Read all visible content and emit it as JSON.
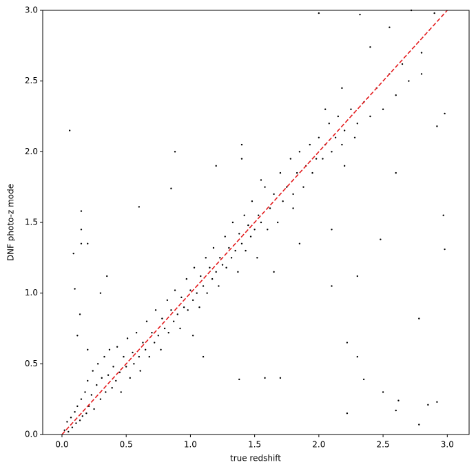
{
  "chart_data": {
    "type": "scatter",
    "x_label": "true redshift",
    "y_label": "DNF photo-z mode",
    "color": "#000000",
    "xlim": [
      -0.15,
      3.17
    ],
    "ylim": [
      0,
      3
    ],
    "xticks": [
      {
        "value": 0,
        "label": "0.0"
      },
      0.5,
      {
        "value": 1,
        "label": "1.0"
      },
      1.5,
      {
        "value": 2,
        "label": "2.0"
      },
      2.5,
      {
        "value": 3,
        "label": "3.0"
      }
    ],
    "yticks": [
      {
        "value": 0,
        "label": "0.0"
      },
      0.5,
      {
        "value": 1,
        "label": "1.0"
      },
      1.5,
      {
        "value": 2,
        "label": "2.0"
      },
      2.5,
      {
        "value": 3,
        "label": "3.0"
      }
    ],
    "reference_line": {
      "x": [
        0,
        3
      ],
      "y": [
        0,
        3
      ],
      "color": "#e41a1c",
      "style": "dashed"
    },
    "x": [
      0.06,
      0.15,
      0.15,
      0.2,
      0.15,
      0.09,
      0.1,
      0.88,
      1.38,
      1.58,
      2.22,
      2.6,
      2.35,
      2.78,
      2.92,
      2.85,
      2.62,
      2.22,
      2.78,
      2.98,
      2.97,
      2.98,
      2.4,
      2.32,
      2.72,
      2.9,
      2.55,
      0.6,
      0.85,
      1.4,
      2.0,
      2.3,
      2.5,
      1.7,
      1.02,
      1.1,
      0.3,
      0.35,
      0.14,
      0.12,
      0.2,
      2.1,
      2.3,
      2.48,
      2.6,
      2.8,
      2.92,
      2.2,
      2.1,
      1.85,
      1.65,
      1.8,
      2.05,
      2.18,
      1.55,
      1.4,
      1.2,
      0.02,
      0.04,
      0.05,
      0.07,
      0.08,
      0.1,
      0.11,
      0.12,
      0.14,
      0.15,
      0.16,
      0.18,
      0.19,
      0.2,
      0.21,
      0.23,
      0.24,
      0.25,
      0.27,
      0.28,
      0.3,
      0.31,
      0.33,
      0.34,
      0.36,
      0.37,
      0.39,
      0.4,
      0.42,
      0.43,
      0.45,
      0.46,
      0.48,
      0.5,
      0.51,
      0.53,
      0.55,
      0.56,
      0.58,
      0.6,
      0.61,
      0.63,
      0.65,
      0.66,
      0.68,
      0.7,
      0.72,
      0.73,
      0.75,
      0.77,
      0.78,
      0.8,
      0.82,
      0.83,
      0.85,
      0.87,
      0.88,
      0.9,
      0.92,
      0.93,
      0.95,
      0.97,
      0.98,
      1.0,
      1.02,
      1.03,
      1.05,
      1.07,
      1.08,
      1.1,
      1.12,
      1.13,
      1.15,
      1.17,
      1.18,
      1.2,
      1.22,
      1.23,
      1.25,
      1.27,
      1.28,
      1.3,
      1.32,
      1.33,
      1.35,
      1.37,
      1.38,
      1.4,
      1.42,
      1.43,
      1.45,
      1.47,
      1.48,
      1.5,
      1.52,
      1.53,
      1.55,
      1.58,
      1.6,
      1.62,
      1.65,
      1.68,
      1.7,
      1.72,
      1.75,
      1.78,
      1.8,
      1.83,
      1.85,
      1.88,
      1.9,
      1.93,
      1.95,
      1.98,
      2.0,
      2.03,
      2.05,
      2.08,
      2.1,
      2.13,
      2.15,
      2.18,
      2.2,
      2.25,
      2.28,
      2.3,
      2.35,
      2.4,
      2.45,
      2.5,
      2.55,
      2.6,
      2.65,
      2.7,
      2.8
    ],
    "y": [
      2.15,
      1.45,
      1.35,
      1.35,
      1.58,
      1.28,
      1.03,
      2.0,
      0.39,
      0.4,
      0.15,
      0.17,
      0.39,
      0.07,
      0.23,
      0.21,
      0.24,
      0.65,
      0.82,
      1.31,
      1.55,
      2.27,
      2.74,
      2.97,
      3.0,
      2.98,
      2.88,
      1.61,
      1.74,
      2.05,
      2.98,
      0.55,
      0.3,
      0.4,
      0.7,
      0.55,
      1.0,
      1.12,
      0.85,
      0.7,
      0.6,
      1.05,
      1.12,
      1.38,
      1.85,
      2.55,
      2.18,
      1.9,
      1.45,
      1.35,
      1.15,
      1.6,
      2.3,
      2.45,
      1.8,
      1.95,
      1.9,
      0.03,
      0.09,
      0.02,
      0.12,
      0.05,
      0.16,
      0.08,
      0.2,
      0.1,
      0.25,
      0.13,
      0.3,
      0.15,
      0.38,
      0.2,
      0.28,
      0.45,
      0.18,
      0.35,
      0.5,
      0.25,
      0.4,
      0.55,
      0.3,
      0.42,
      0.6,
      0.33,
      0.48,
      0.38,
      0.62,
      0.44,
      0.3,
      0.55,
      0.48,
      0.68,
      0.4,
      0.58,
      0.5,
      0.72,
      0.55,
      0.45,
      0.65,
      0.6,
      0.8,
      0.55,
      0.72,
      0.65,
      0.88,
      0.7,
      0.6,
      0.82,
      0.75,
      0.95,
      0.72,
      0.88,
      0.8,
      1.02,
      0.85,
      0.75,
      0.97,
      0.9,
      1.1,
      0.88,
      1.02,
      0.95,
      1.18,
      1.0,
      0.9,
      1.12,
      1.05,
      1.25,
      1.0,
      1.18,
      1.1,
      1.32,
      1.15,
      1.05,
      1.25,
      1.2,
      1.4,
      1.18,
      1.32,
      1.25,
      1.5,
      1.3,
      1.15,
      1.42,
      1.35,
      1.55,
      1.3,
      1.48,
      1.4,
      1.65,
      1.45,
      1.25,
      1.55,
      1.5,
      1.75,
      1.45,
      1.6,
      1.7,
      1.5,
      1.85,
      1.65,
      1.75,
      1.95,
      1.7,
      1.85,
      2.0,
      1.75,
      1.9,
      2.05,
      1.85,
      1.95,
      2.1,
      1.95,
      2.05,
      2.2,
      2.0,
      2.1,
      2.25,
      2.05,
      2.15,
      2.3,
      2.1,
      2.2,
      2.35,
      2.25,
      2.45,
      2.3,
      2.55,
      2.4,
      2.62,
      2.5,
      2.7
    ]
  }
}
